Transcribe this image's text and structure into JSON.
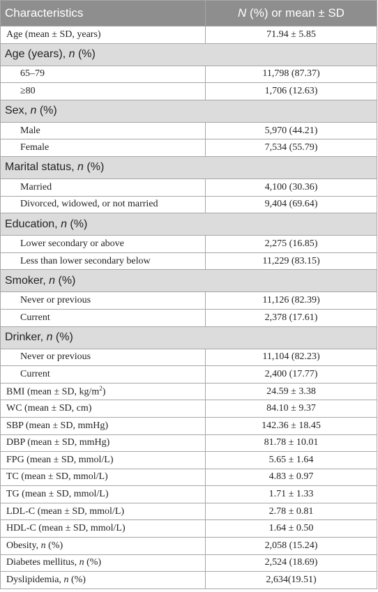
{
  "table": {
    "header": [
      [
        {
          "text": "Characteristics"
        }
      ],
      [
        {
          "text": "N",
          "italic": true
        },
        {
          "text": " (%) or mean ± SD"
        }
      ]
    ],
    "rows": [
      {
        "label": [
          {
            "text": "Age (mean ± SD, years)"
          }
        ],
        "value": "71.94 ± 5.85"
      },
      {
        "section": true,
        "label": [
          {
            "text": "Age (years), "
          },
          {
            "text": "n",
            "italic": true
          },
          {
            "text": " (%)"
          }
        ]
      },
      {
        "indent": true,
        "label": [
          {
            "text": "65–79"
          }
        ],
        "value": "11,798 (87.37)"
      },
      {
        "indent": true,
        "label": [
          {
            "text": "≥80"
          }
        ],
        "value": "1,706 (12.63)"
      },
      {
        "section": true,
        "label": [
          {
            "text": "Sex, "
          },
          {
            "text": "n",
            "italic": true
          },
          {
            "text": " (%)"
          }
        ]
      },
      {
        "indent": true,
        "label": [
          {
            "text": "Male"
          }
        ],
        "value": "5,970 (44.21)"
      },
      {
        "indent": true,
        "label": [
          {
            "text": "Female"
          }
        ],
        "value": "7,534 (55.79)"
      },
      {
        "section": true,
        "label": [
          {
            "text": "Marital status, "
          },
          {
            "text": "n",
            "italic": true
          },
          {
            "text": " (%)"
          }
        ]
      },
      {
        "indent": true,
        "label": [
          {
            "text": "Married"
          }
        ],
        "value": "4,100 (30.36)"
      },
      {
        "indent": true,
        "label": [
          {
            "text": "Divorced, widowed, or not married"
          }
        ],
        "value": "9,404 (69.64)"
      },
      {
        "section": true,
        "label": [
          {
            "text": "Education, "
          },
          {
            "text": "n",
            "italic": true
          },
          {
            "text": " (%)"
          }
        ]
      },
      {
        "indent": true,
        "label": [
          {
            "text": "Lower secondary or above"
          }
        ],
        "value": "2,275 (16.85)"
      },
      {
        "indent": true,
        "label": [
          {
            "text": "Less than lower secondary below"
          }
        ],
        "value": "11,229 (83.15)"
      },
      {
        "section": true,
        "label": [
          {
            "text": "Smoker, "
          },
          {
            "text": "n",
            "italic": true
          },
          {
            "text": " (%)"
          }
        ]
      },
      {
        "indent": true,
        "label": [
          {
            "text": "Never or previous"
          }
        ],
        "value": "11,126 (82.39)"
      },
      {
        "indent": true,
        "label": [
          {
            "text": "Current"
          }
        ],
        "value": "2,378 (17.61)"
      },
      {
        "section": true,
        "label": [
          {
            "text": "Drinker, "
          },
          {
            "text": "n",
            "italic": true
          },
          {
            "text": " (%)"
          }
        ]
      },
      {
        "indent": true,
        "label": [
          {
            "text": "Never or previous"
          }
        ],
        "value": "11,104 (82.23)"
      },
      {
        "indent": true,
        "label": [
          {
            "text": "Current"
          }
        ],
        "value": "2,400 (17.77)"
      },
      {
        "label": [
          {
            "text": "BMI (mean ± SD, kg/m"
          },
          {
            "text": "2",
            "sup": true
          },
          {
            "text": ")"
          }
        ],
        "value": "24.59 ± 3.38"
      },
      {
        "label": [
          {
            "text": "WC (mean ± SD, cm)"
          }
        ],
        "value": "84.10 ± 9.37"
      },
      {
        "label": [
          {
            "text": "SBP (mean ± SD, mmHg)"
          }
        ],
        "value": "142.36 ± 18.45"
      },
      {
        "label": [
          {
            "text": "DBP (mean ± SD, mmHg)"
          }
        ],
        "value": "81.78 ± 10.01"
      },
      {
        "label": [
          {
            "text": "FPG (mean ± SD, mmol/L)"
          }
        ],
        "value": "5.65 ± 1.64"
      },
      {
        "label": [
          {
            "text": "TC (mean ± SD, mmol/L)"
          }
        ],
        "value": "4.83 ± 0.97"
      },
      {
        "label": [
          {
            "text": "TG (mean ± SD, mmol/L)"
          }
        ],
        "value": "1.71 ± 1.33"
      },
      {
        "label": [
          {
            "text": "LDL-C (mean ± SD, mmol/L)"
          }
        ],
        "value": "2.78 ± 0.81"
      },
      {
        "label": [
          {
            "text": "HDL-C (mean ± SD, mmol/L)"
          }
        ],
        "value": "1.64 ± 0.50"
      },
      {
        "label": [
          {
            "text": "Obesity, "
          },
          {
            "text": "n",
            "italic": true
          },
          {
            "text": " (%)"
          }
        ],
        "value": "2,058 (15.24)"
      },
      {
        "label": [
          {
            "text": "Diabetes mellitus, "
          },
          {
            "text": "n",
            "italic": true
          },
          {
            "text": " (%)"
          }
        ],
        "value": "2,524 (18.69)"
      },
      {
        "label": [
          {
            "text": "Dyslipidemia, "
          },
          {
            "text": "n",
            "italic": true
          },
          {
            "text": " (%)"
          }
        ],
        "value": "2,634(19.51)"
      }
    ]
  }
}
